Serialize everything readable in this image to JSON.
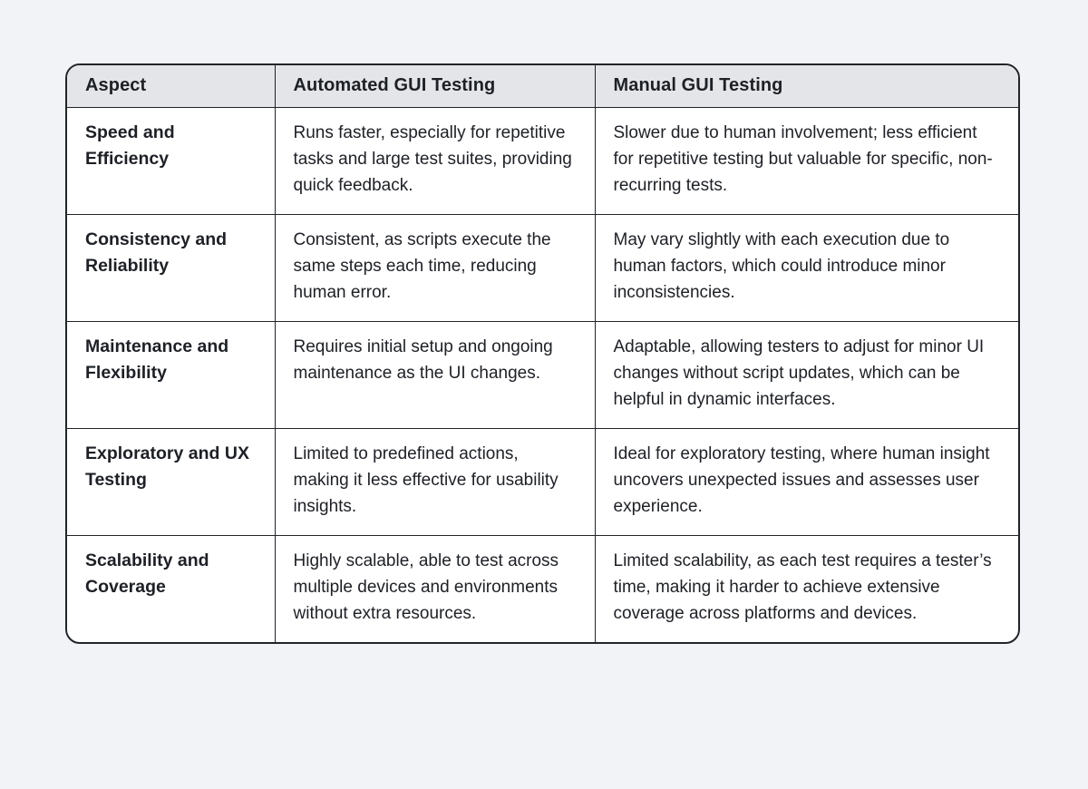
{
  "colors": {
    "page_bg": "#f1f3f6",
    "table_border": "#212428",
    "header_bg": "#e3e5e8",
    "body_bg": "#ffffff",
    "text": "#1d2025"
  },
  "table": {
    "columns": [
      "Aspect",
      "Automated GUI Testing",
      "Manual GUI Testing"
    ],
    "rows": [
      {
        "aspect": "Speed and Efficiency",
        "automated": "Runs faster, especially for repetitive tasks and large test suites, providing quick feedback.",
        "manual": "Slower due to human involvement; less efficient for repetitive testing but valuable for specific, non-recurring tests."
      },
      {
        "aspect": "Consistency and Reliability",
        "automated": "Consistent, as scripts execute the same steps each time, reducing human error.",
        "manual": "May vary slightly with each execution due to human factors, which could introduce minor inconsistencies."
      },
      {
        "aspect": "Maintenance and Flexibility",
        "automated": "Requires initial setup and ongoing maintenance as the UI changes.",
        "manual": "Adaptable, allowing testers to adjust for minor UI changes without script updates, which can be helpful in dynamic interfaces."
      },
      {
        "aspect": "Exploratory and UX Testing",
        "automated": "Limited to predefined actions, making it less effective for usability insights.",
        "manual": "Ideal for exploratory testing, where human insight uncovers unexpected issues and assesses user experience."
      },
      {
        "aspect": "Scalability and Coverage",
        "automated": "Highly scalable, able to test across multiple devices and environments without extra resources.",
        "manual": "Limited scalability, as each test requires a tester’s time, making it harder to achieve extensive coverage across platforms and devices."
      }
    ]
  }
}
